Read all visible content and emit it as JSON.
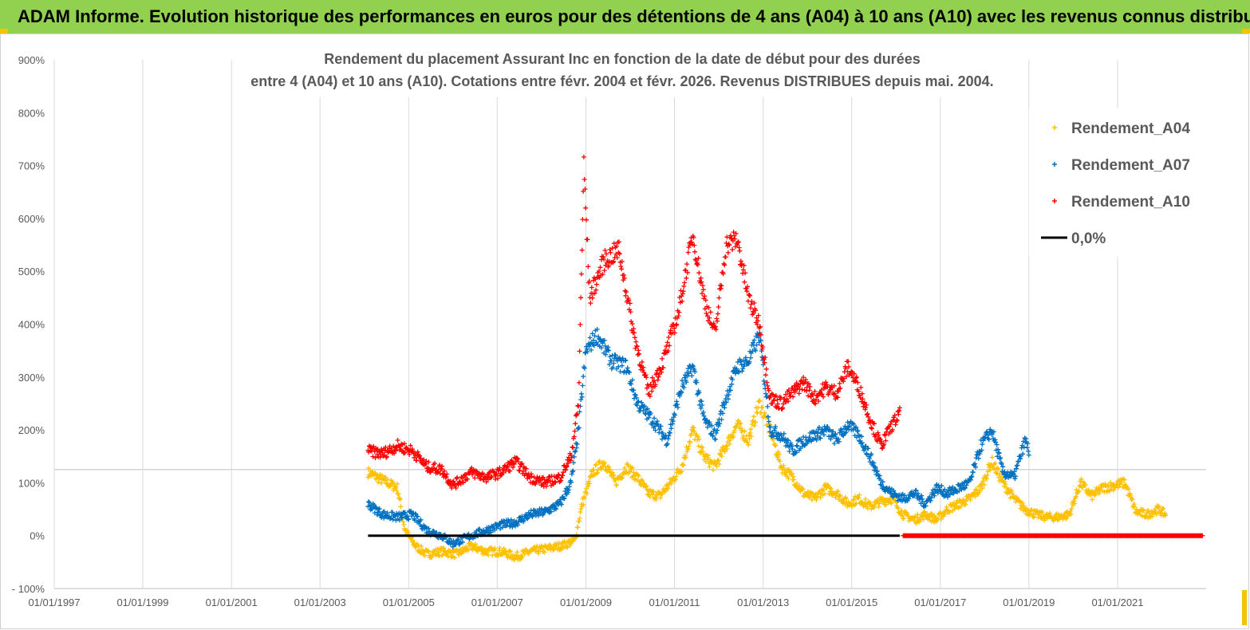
{
  "header": {
    "title": "ADAM Informe. Evolution historique des performances en euros pour des détentions de 4 ans (A04) à 10 ans (A10) avec les revenus connus distribués"
  },
  "colors": {
    "banner": "#92d050",
    "a04": "#ffc000",
    "a07": "#0070c0",
    "a10": "#ff0000",
    "zero": "#000000"
  },
  "chart_data": {
    "type": "scatter",
    "title_line1": "Rendement du placement Assurant Inc en fonction de la date de début pour des durées",
    "title_line2": "entre 4 (A04) et 10 ans (A10).  Cotations entre févr. 2004 et févr. 2026. Revenus DISTRIBUES depuis mai. 2004.",
    "xlabel": "",
    "ylabel": "",
    "x_range": [
      "1997-01-01",
      "2023-01-01"
    ],
    "x_ticks": [
      "01/01/1997",
      "01/01/1999",
      "01/01/2001",
      "01/01/2003",
      "01/01/2005",
      "01/01/2007",
      "01/01/2009",
      "01/01/2011",
      "01/01/2013",
      "01/01/2015",
      "01/01/2017",
      "01/01/2019",
      "01/01/2021"
    ],
    "y_range": [
      -100,
      900
    ],
    "y_ticks": [
      "- 100%",
      "0%",
      "100%",
      "200%",
      "300%",
      "400%",
      "500%",
      "600%",
      "700%",
      "800%",
      "900%"
    ],
    "y_unit": "%",
    "grid": "vertical",
    "legend_position": "top-right",
    "series": [
      {
        "name": "Rendement_A04",
        "marker": "+",
        "color": "#ffc000",
        "points": [
          [
            "2004-02-01",
            120
          ],
          [
            "2004-06-01",
            105
          ],
          [
            "2004-10-01",
            90
          ],
          [
            "2004-12-01",
            10
          ],
          [
            "2005-03-01",
            -20
          ],
          [
            "2005-06-01",
            -35
          ],
          [
            "2005-10-01",
            -30
          ],
          [
            "2006-02-01",
            -35
          ],
          [
            "2006-06-01",
            -20
          ],
          [
            "2006-10-01",
            -30
          ],
          [
            "2007-02-01",
            -30
          ],
          [
            "2007-06-01",
            -40
          ],
          [
            "2007-10-01",
            -30
          ],
          [
            "2008-02-01",
            -25
          ],
          [
            "2008-06-01",
            -20
          ],
          [
            "2008-10-01",
            -10
          ],
          [
            "2008-12-01",
            60
          ],
          [
            "2009-03-01",
            120
          ],
          [
            "2009-06-01",
            140
          ],
          [
            "2009-09-01",
            100
          ],
          [
            "2009-12-01",
            130
          ],
          [
            "2010-03-01",
            110
          ],
          [
            "2010-06-01",
            80
          ],
          [
            "2010-09-01",
            75
          ],
          [
            "2010-12-01",
            100
          ],
          [
            "2011-03-01",
            130
          ],
          [
            "2011-06-01",
            200
          ],
          [
            "2011-09-01",
            150
          ],
          [
            "2011-12-01",
            130
          ],
          [
            "2012-03-01",
            170
          ],
          [
            "2012-06-01",
            210
          ],
          [
            "2012-09-01",
            180
          ],
          [
            "2012-12-01",
            250
          ],
          [
            "2013-03-01",
            200
          ],
          [
            "2013-06-01",
            130
          ],
          [
            "2013-09-01",
            110
          ],
          [
            "2013-12-01",
            80
          ],
          [
            "2014-03-01",
            70
          ],
          [
            "2014-06-01",
            90
          ],
          [
            "2014-09-01",
            80
          ],
          [
            "2014-12-01",
            60
          ],
          [
            "2015-03-01",
            70
          ],
          [
            "2015-06-01",
            55
          ],
          [
            "2015-09-01",
            65
          ],
          [
            "2015-12-01",
            70
          ],
          [
            "2016-03-01",
            40
          ],
          [
            "2016-06-01",
            30
          ],
          [
            "2016-09-01",
            40
          ],
          [
            "2016-12-01",
            30
          ],
          [
            "2017-03-01",
            50
          ],
          [
            "2017-06-01",
            60
          ],
          [
            "2017-09-01",
            70
          ],
          [
            "2017-12-01",
            90
          ],
          [
            "2018-03-01",
            140
          ],
          [
            "2018-06-01",
            100
          ],
          [
            "2018-09-01",
            70
          ],
          [
            "2018-12-01",
            50
          ],
          [
            "2019-03-01",
            40
          ],
          [
            "2019-06-01",
            35
          ],
          [
            "2019-09-01",
            35
          ],
          [
            "2019-12-01",
            40
          ],
          [
            "2020-03-01",
            100
          ],
          [
            "2020-06-01",
            75
          ],
          [
            "2020-09-01",
            90
          ],
          [
            "2020-12-01",
            95
          ],
          [
            "2021-03-01",
            100
          ],
          [
            "2021-06-01",
            45
          ],
          [
            "2021-09-01",
            40
          ],
          [
            "2021-12-01",
            50
          ],
          [
            "2022-02-01",
            40
          ]
        ]
      },
      {
        "name": "Rendement_A07",
        "marker": "+",
        "color": "#0070c0",
        "points": [
          [
            "2004-02-01",
            60
          ],
          [
            "2004-06-01",
            40
          ],
          [
            "2004-10-01",
            35
          ],
          [
            "2005-02-01",
            40
          ],
          [
            "2005-06-01",
            10
          ],
          [
            "2005-10-01",
            0
          ],
          [
            "2006-01-01",
            -15
          ],
          [
            "2006-06-01",
            0
          ],
          [
            "2006-10-01",
            10
          ],
          [
            "2007-02-01",
            20
          ],
          [
            "2007-06-01",
            25
          ],
          [
            "2007-10-01",
            40
          ],
          [
            "2008-02-01",
            45
          ],
          [
            "2008-06-01",
            60
          ],
          [
            "2008-09-01",
            100
          ],
          [
            "2008-11-01",
            200
          ],
          [
            "2009-01-01",
            350
          ],
          [
            "2009-04-01",
            380
          ],
          [
            "2009-08-01",
            330
          ],
          [
            "2009-12-01",
            320
          ],
          [
            "2010-03-01",
            250
          ],
          [
            "2010-07-01",
            220
          ],
          [
            "2010-11-01",
            180
          ],
          [
            "2011-03-01",
            280
          ],
          [
            "2011-06-01",
            320
          ],
          [
            "2011-09-01",
            220
          ],
          [
            "2011-12-01",
            190
          ],
          [
            "2012-03-01",
            260
          ],
          [
            "2012-06-01",
            320
          ],
          [
            "2012-09-01",
            330
          ],
          [
            "2012-12-01",
            380
          ],
          [
            "2013-03-01",
            200
          ],
          [
            "2013-06-01",
            190
          ],
          [
            "2013-09-01",
            160
          ],
          [
            "2013-12-01",
            180
          ],
          [
            "2014-03-01",
            190
          ],
          [
            "2014-06-01",
            200
          ],
          [
            "2014-09-01",
            180
          ],
          [
            "2014-12-01",
            210
          ],
          [
            "2015-03-01",
            190
          ],
          [
            "2015-06-01",
            150
          ],
          [
            "2015-09-01",
            100
          ],
          [
            "2015-12-01",
            80
          ],
          [
            "2016-03-01",
            70
          ],
          [
            "2016-06-01",
            80
          ],
          [
            "2016-09-01",
            60
          ],
          [
            "2016-12-01",
            90
          ],
          [
            "2017-03-01",
            80
          ],
          [
            "2017-06-01",
            90
          ],
          [
            "2017-09-01",
            100
          ],
          [
            "2017-12-01",
            170
          ],
          [
            "2018-03-01",
            200
          ],
          [
            "2018-06-01",
            120
          ],
          [
            "2018-09-01",
            110
          ],
          [
            "2018-12-01",
            180
          ],
          [
            "2019-01-01",
            160
          ]
        ]
      },
      {
        "name": "Rendement_A10",
        "marker": "+",
        "color": "#ff0000",
        "points": [
          [
            "2004-02-01",
            160
          ],
          [
            "2004-06-01",
            155
          ],
          [
            "2004-10-01",
            170
          ],
          [
            "2005-02-01",
            160
          ],
          [
            "2005-06-01",
            130
          ],
          [
            "2005-10-01",
            125
          ],
          [
            "2006-01-01",
            95
          ],
          [
            "2006-06-01",
            120
          ],
          [
            "2006-10-01",
            110
          ],
          [
            "2007-02-01",
            120
          ],
          [
            "2007-06-01",
            140
          ],
          [
            "2007-10-01",
            110
          ],
          [
            "2008-02-01",
            100
          ],
          [
            "2008-06-01",
            110
          ],
          [
            "2008-09-01",
            150
          ],
          [
            "2008-11-01",
            250
          ],
          [
            "2008-12-15",
            700
          ],
          [
            "2009-02-01",
            450
          ],
          [
            "2009-06-01",
            520
          ],
          [
            "2009-10-01",
            540
          ],
          [
            "2010-02-01",
            380
          ],
          [
            "2010-06-01",
            270
          ],
          [
            "2010-10-01",
            330
          ],
          [
            "2011-02-01",
            420
          ],
          [
            "2011-06-01",
            570
          ],
          [
            "2011-09-01",
            450
          ],
          [
            "2011-12-01",
            380
          ],
          [
            "2012-03-01",
            550
          ],
          [
            "2012-06-01",
            560
          ],
          [
            "2012-09-01",
            450
          ],
          [
            "2012-12-01",
            400
          ],
          [
            "2013-03-01",
            260
          ],
          [
            "2013-06-01",
            250
          ],
          [
            "2013-09-01",
            270
          ],
          [
            "2013-12-01",
            290
          ],
          [
            "2014-03-01",
            260
          ],
          [
            "2014-06-01",
            280
          ],
          [
            "2014-09-01",
            270
          ],
          [
            "2014-12-01",
            320
          ],
          [
            "2015-03-01",
            280
          ],
          [
            "2015-06-01",
            220
          ],
          [
            "2015-09-01",
            170
          ],
          [
            "2015-12-01",
            210
          ],
          [
            "2016-02-01",
            230
          ]
        ]
      },
      {
        "name": "0,0%",
        "marker": "line",
        "color": "#000000",
        "points": [
          [
            "2004-02-01",
            0
          ],
          [
            "2016-02-01",
            0
          ]
        ]
      },
      {
        "name": "",
        "marker": "+",
        "color": "#ff0000",
        "points": [
          [
            "2016-03-01",
            0
          ],
          [
            "2022-12-01",
            0
          ]
        ]
      }
    ]
  }
}
